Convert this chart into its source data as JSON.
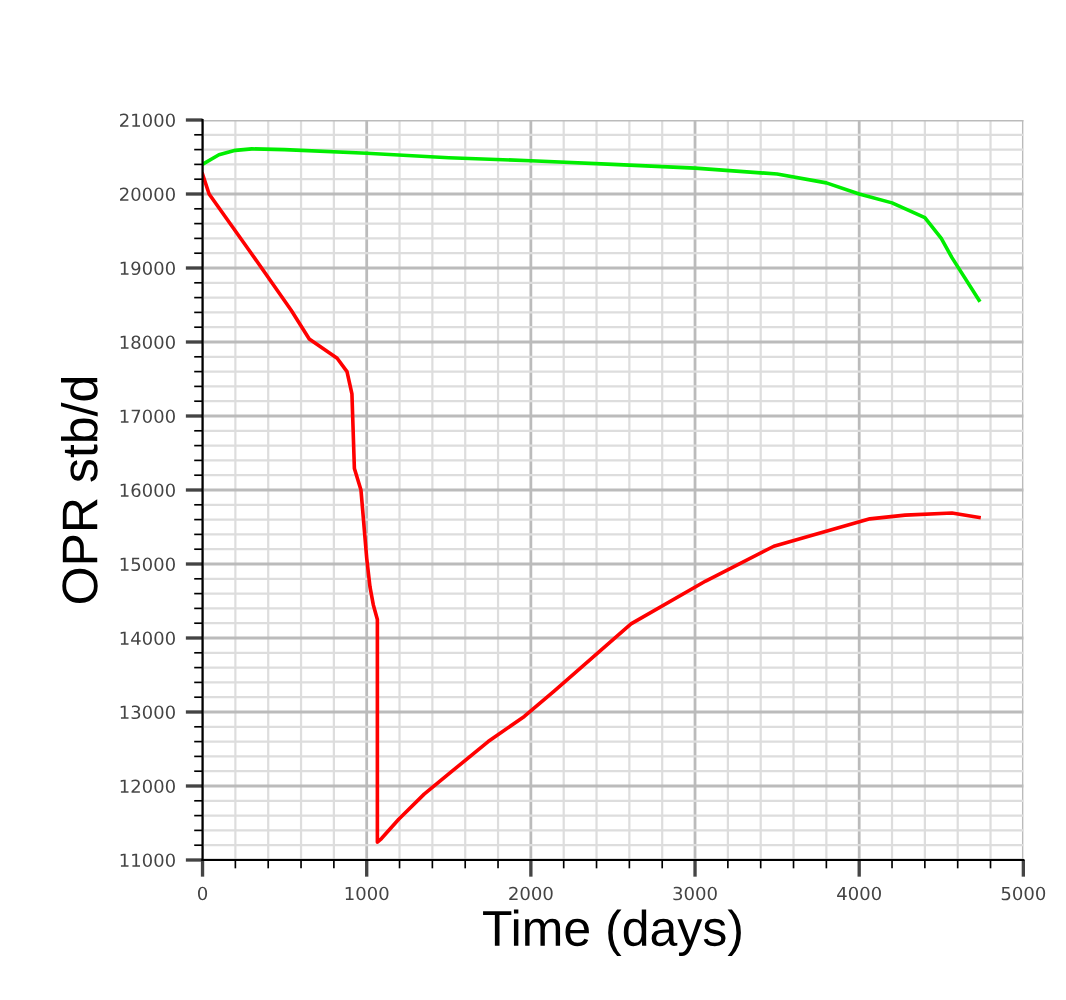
{
  "chart_data": {
    "type": "line",
    "xlabel": "Time (days)",
    "ylabel": "OPR stb/d",
    "xlim": [
      0,
      5000
    ],
    "xticks": [
      0,
      1000,
      2000,
      3000,
      4000,
      5000
    ],
    "ylim": [
      11000,
      21000
    ],
    "yticks": [
      11000,
      12000,
      13000,
      14000,
      15000,
      16000,
      17000,
      18000,
      19000,
      20000,
      21000
    ],
    "grid": true,
    "legend": false,
    "marker": "none",
    "line_style": "solid",
    "series": [
      {
        "color": "#00ee00",
        "x": [
          0,
          100,
          200,
          300,
          500,
          1000,
          1500,
          2000,
          2500,
          3000,
          3500,
          3800,
          4000,
          4200,
          4400,
          4500,
          4565,
          4730
        ],
        "values": [
          20400,
          20530,
          20590,
          20610,
          20600,
          20550,
          20490,
          20450,
          20400,
          20350,
          20270,
          20150,
          20000,
          19880,
          19680,
          19400,
          19140,
          18565
        ]
      },
      {
        "color": "#ff0000",
        "x": [
          0,
          40,
          290,
          540,
          650,
          820,
          880,
          910,
          925,
          965,
          1000,
          1020,
          1040,
          1065,
          1065,
          1090,
          1195,
          1350,
          1520,
          1740,
          1960,
          2140,
          2610,
          3065,
          3480,
          4065,
          4280,
          4565,
          4730
        ],
        "values": [
          20270,
          20000,
          19220,
          18430,
          18040,
          17780,
          17600,
          17300,
          16290,
          16000,
          15080,
          14690,
          14450,
          14250,
          11240,
          11290,
          11550,
          11890,
          12200,
          12600,
          12940,
          13280,
          14190,
          14770,
          15240,
          15610,
          15660,
          15690,
          15630
        ]
      }
    ]
  }
}
